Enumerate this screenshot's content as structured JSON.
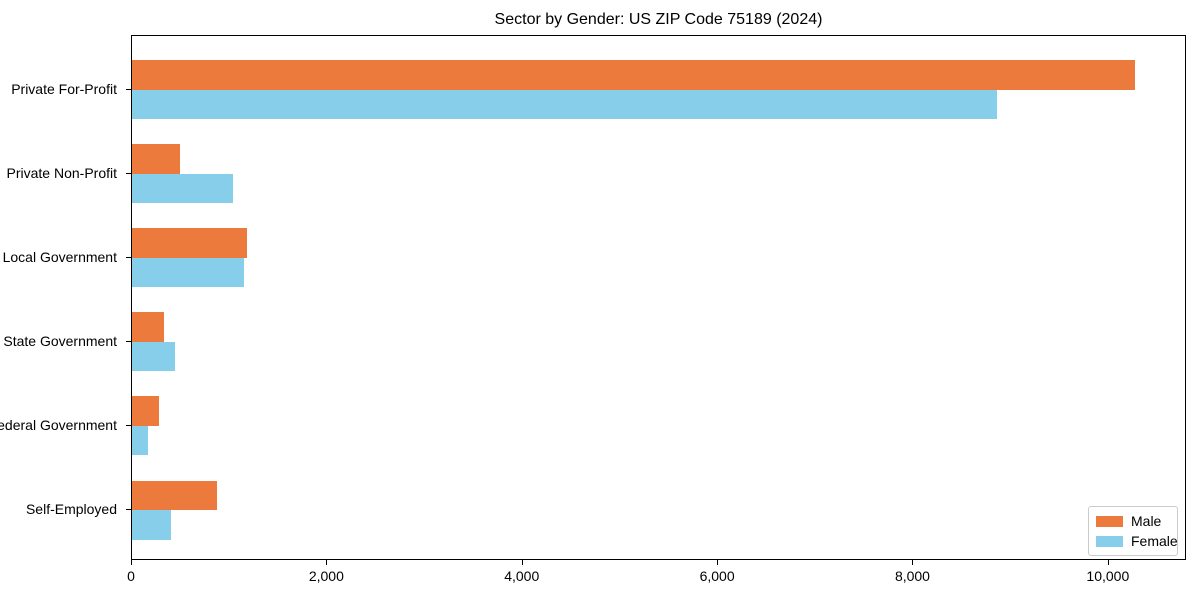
{
  "chart_data": {
    "type": "bar",
    "orientation": "horizontal",
    "title": "Sector by Gender: US ZIP Code 75189 (2024)",
    "categories": [
      "Private For-Profit",
      "Private Non-Profit",
      "Local Government",
      "State Government",
      "Federal Government",
      "Self-Employed"
    ],
    "series": [
      {
        "name": "Male",
        "color": "#ec7a3c",
        "values": [
          10270,
          490,
          1175,
          330,
          275,
          870
        ]
      },
      {
        "name": "Female",
        "color": "#87ceeb",
        "values": [
          8850,
          1030,
          1145,
          440,
          160,
          400
        ]
      }
    ],
    "xlabel": "",
    "ylabel": "",
    "xlim": [
      0,
      10800
    ],
    "x_ticks": [
      0,
      2000,
      4000,
      6000,
      8000,
      10000
    ],
    "x_tick_labels": [
      "0",
      "2,000",
      "4,000",
      "6,000",
      "8,000",
      "10,000"
    ],
    "legend_position": "lower right",
    "grid": false
  }
}
